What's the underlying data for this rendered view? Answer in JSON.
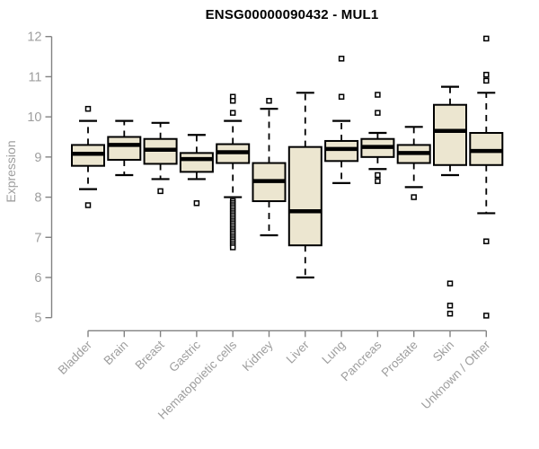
{
  "chart_data": {
    "type": "boxplot",
    "title": "ENSG00000090432 - MUL1",
    "ylabel": "Expression",
    "ylim": [
      5,
      12
    ],
    "yticks": [
      5,
      6,
      7,
      8,
      9,
      10,
      11,
      12
    ],
    "grid": false,
    "legend": false,
    "categories": [
      "Bladder",
      "Brain",
      "Breast",
      "Gastric",
      "Hematopoietic cells",
      "Kidney",
      "Liver",
      "Lung",
      "Pancreas",
      "Prostate",
      "Skin",
      "Unknown / Other"
    ],
    "series": [
      {
        "category": "Bladder",
        "whisker_low": 8.2,
        "q1": 8.78,
        "median": 9.08,
        "q3": 9.3,
        "whisker_high": 9.9,
        "outliers": [
          10.2,
          7.8
        ]
      },
      {
        "category": "Brain",
        "whisker_low": 8.55,
        "q1": 8.93,
        "median": 9.3,
        "q3": 9.5,
        "whisker_high": 9.9,
        "outliers": []
      },
      {
        "category": "Breast",
        "whisker_low": 8.45,
        "q1": 8.83,
        "median": 9.18,
        "q3": 9.45,
        "whisker_high": 9.85,
        "outliers": [
          8.15
        ]
      },
      {
        "category": "Gastric",
        "whisker_low": 8.45,
        "q1": 8.63,
        "median": 8.95,
        "q3": 9.1,
        "whisker_high": 9.55,
        "outliers": [
          7.85
        ]
      },
      {
        "category": "Hematopoietic cells",
        "whisker_low": 8.0,
        "q1": 8.85,
        "median": 9.12,
        "q3": 9.32,
        "whisker_high": 9.9,
        "outliers": [
          10.5,
          10.4,
          10.1,
          7.9,
          7.85,
          7.8,
          7.75,
          7.7,
          7.65,
          7.6,
          7.55,
          7.5,
          7.45,
          7.4,
          7.35,
          7.3,
          7.25,
          7.2,
          7.15,
          7.1,
          7.05,
          7.0,
          6.95,
          6.9,
          6.85,
          6.8,
          6.75
        ]
      },
      {
        "category": "Kidney",
        "whisker_low": 7.05,
        "q1": 7.9,
        "median": 8.4,
        "q3": 8.85,
        "whisker_high": 10.2,
        "outliers": [
          10.4
        ]
      },
      {
        "category": "Liver",
        "whisker_low": 6.0,
        "q1": 6.8,
        "median": 7.65,
        "q3": 9.25,
        "whisker_high": 10.6,
        "outliers": []
      },
      {
        "category": "Lung",
        "whisker_low": 8.35,
        "q1": 8.9,
        "median": 9.2,
        "q3": 9.4,
        "whisker_high": 9.9,
        "outliers": [
          11.45,
          10.5
        ]
      },
      {
        "category": "Pancreas",
        "whisker_low": 8.7,
        "q1": 9.0,
        "median": 9.25,
        "q3": 9.45,
        "whisker_high": 9.6,
        "outliers": [
          10.55,
          10.1,
          8.55,
          8.4
        ]
      },
      {
        "category": "Prostate",
        "whisker_low": 8.25,
        "q1": 8.85,
        "median": 9.1,
        "q3": 9.3,
        "whisker_high": 9.75,
        "outliers": [
          8.0
        ]
      },
      {
        "category": "Skin",
        "whisker_low": 8.55,
        "q1": 8.8,
        "median": 9.65,
        "q3": 10.3,
        "whisker_high": 10.75,
        "outliers": [
          5.85,
          5.3,
          5.1
        ]
      },
      {
        "category": "Unknown / Other",
        "whisker_low": 7.6,
        "q1": 8.8,
        "median": 9.15,
        "q3": 9.6,
        "whisker_high": 10.6,
        "outliers": [
          11.95,
          11.05,
          10.9,
          6.9,
          5.05
        ]
      }
    ],
    "colors": {
      "box_fill": "#ece6d0",
      "box_stroke": "#000000",
      "median": "#000000",
      "whisker": "#000000",
      "outlier_stroke": "#000000",
      "axis_line": "#828282",
      "tick_label": "#9e9e9e",
      "title": "#000000",
      "background": "#ffffff"
    }
  }
}
